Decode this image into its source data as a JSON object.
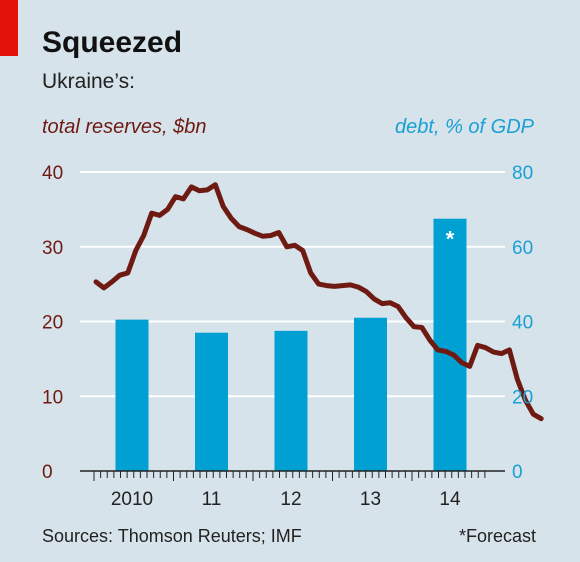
{
  "title": "Squeezed",
  "subtitle": "Ukraine’s:",
  "source": "Sources: Thomson Reuters; IMF",
  "footnote": "*Forecast",
  "colors": {
    "reserves": "#6e1a12",
    "debt": "#00a0d2",
    "background": "#d6e3ea",
    "accent": "#e3120b"
  },
  "chart_data": {
    "type": "bar+line",
    "left_axis": {
      "label": "total reserves, $bn",
      "range": [
        0,
        40
      ],
      "ticks": [
        0,
        10,
        20,
        30,
        40
      ]
    },
    "right_axis": {
      "label": "debt, % of GDP",
      "range": [
        0,
        80
      ],
      "ticks": [
        0,
        20,
        40,
        60,
        80
      ]
    },
    "x_ticks": [
      "2010",
      "11",
      "12",
      "13",
      "14"
    ],
    "x_range": [
      2009.0,
      2015.0
    ],
    "grid": true,
    "bars": {
      "axis": "right",
      "categories": [
        "2010",
        "11",
        "12",
        "13",
        "14"
      ],
      "values": [
        40.5,
        37,
        37.5,
        41,
        67.5
      ],
      "annotations": [
        "",
        "",
        "",
        "",
        "*"
      ]
    },
    "line": {
      "axis": "left",
      "x": [
        2009.0,
        2009.1,
        2009.2,
        2009.3,
        2009.4,
        2009.5,
        2009.6,
        2009.7,
        2009.8,
        2009.9,
        2010.0,
        2010.1,
        2010.2,
        2010.3,
        2010.4,
        2010.5,
        2010.6,
        2010.7,
        2010.8,
        2010.9,
        2011.0,
        2011.1,
        2011.2,
        2011.3,
        2011.4,
        2011.5,
        2011.6,
        2011.7,
        2011.8,
        2011.9,
        2012.0,
        2012.1,
        2012.2,
        2012.3,
        2012.4,
        2012.5,
        2012.6,
        2012.7,
        2012.8,
        2012.9,
        2013.0,
        2013.1,
        2013.2,
        2013.3,
        2013.4,
        2013.5,
        2013.6,
        2013.7,
        2013.8,
        2013.9,
        2014.0,
        2014.1,
        2014.2,
        2014.3,
        2014.4,
        2014.5,
        2014.6
      ],
      "values": [
        25.3,
        24.5,
        25.3,
        26.2,
        26.5,
        29.5,
        31.5,
        34.5,
        34.2,
        35.0,
        36.7,
        36.4,
        38.0,
        37.5,
        37.6,
        38.3,
        35.4,
        33.8,
        32.7,
        32.3,
        31.8,
        31.4,
        31.5,
        31.9,
        30.0,
        30.2,
        29.5,
        26.5,
        25.0,
        24.8,
        24.7,
        24.8,
        24.9,
        24.6,
        24.0,
        23.0,
        22.4,
        22.5,
        22.0,
        20.5,
        19.3,
        19.2,
        17.5,
        16.2,
        16.0,
        15.5,
        14.5,
        14.0,
        16.8,
        16.5,
        15.9,
        15.7,
        16.2,
        12.3,
        9.5,
        7.6,
        7.0
      ]
    }
  }
}
